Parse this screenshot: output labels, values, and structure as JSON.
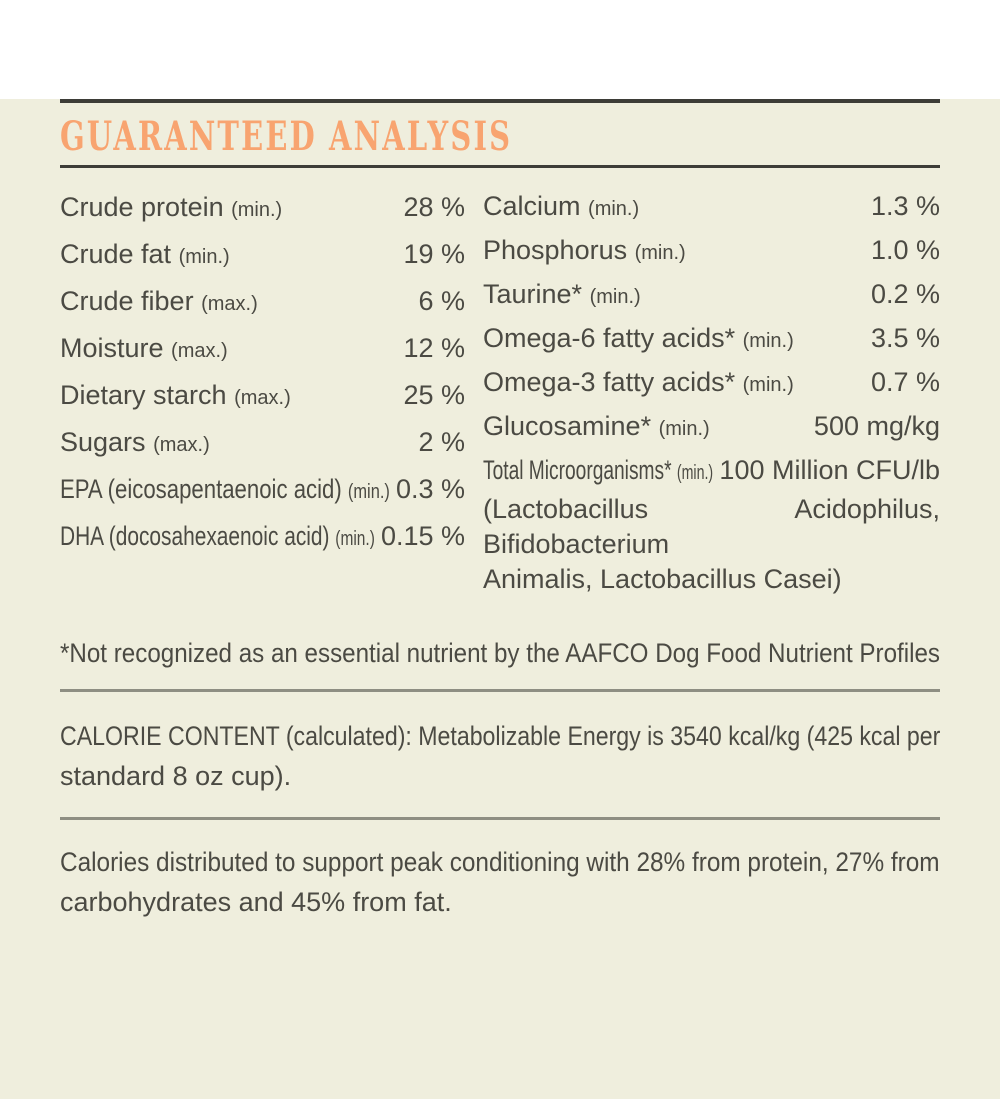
{
  "theme": {
    "background": "#EFEEDD",
    "text": "#4B4A43",
    "accent": "#F8A470",
    "rule_dark": "#3D3D37",
    "rule_light": "#8E8E82"
  },
  "title": "GUARANTEED ANALYSIS",
  "analysis": {
    "left": [
      {
        "label": "Crude protein",
        "qualifier": "(min.)",
        "value": "28 %"
      },
      {
        "label": "Crude fat",
        "qualifier": "(min.)",
        "value": "19 %"
      },
      {
        "label": "Crude fiber",
        "qualifier": "(max.)",
        "value": "6 %"
      },
      {
        "label": "Moisture",
        "qualifier": "(max.)",
        "value": "12 %"
      },
      {
        "label": "Dietary starch",
        "qualifier": "(max.)",
        "value": "25 %"
      },
      {
        "label": "Sugars",
        "qualifier": "(max.)",
        "value": "2 %"
      },
      {
        "label": "EPA (eicosapentaenoic acid)",
        "qualifier": "(min.)",
        "value": "0.3 %"
      },
      {
        "label": "DHA (docosahexaenoic acid)",
        "qualifier": "(min.)",
        "value": "0.15 %"
      }
    ],
    "right": [
      {
        "label": "Calcium",
        "qualifier": "(min.)",
        "value": "1.3 %"
      },
      {
        "label": "Phosphorus",
        "qualifier": "(min.)",
        "value": "1.0 %"
      },
      {
        "label": "Taurine*",
        "qualifier": "(min.)",
        "value": "0.2 %"
      },
      {
        "label": "Omega-6 fatty acids*",
        "qualifier": "(min.)",
        "value": "3.5 %"
      },
      {
        "label": "Omega-3 fatty acids*",
        "qualifier": "(min.)",
        "value": "0.7 %"
      },
      {
        "label": "Glucosamine*",
        "qualifier": "(min.)",
        "value": "500 mg/kg"
      },
      {
        "label": "Total Microorganisms*",
        "qualifier": "(min.)",
        "value": "100 Million CFU/lb",
        "note_lines": [
          "(Lactobacillus Acidophilus, Bifidobacterium",
          "Animalis, Lactobacillus Casei)"
        ]
      }
    ]
  },
  "footnote": "*Not recognized as an essential nutrient by the AAFCO Dog Food Nutrient Profiles",
  "calorie_content": {
    "lines": [
      "CALORIE CONTENT (calculated): Metabolizable Energy is 3540 kcal/kg (425 kcal per",
      "standard 8 oz cup)."
    ]
  },
  "calorie_distribution": {
    "lines": [
      "Calories distributed to support peak conditioning with 28% from protein, 27% from",
      "carbohydrates and 45% from fat."
    ]
  }
}
